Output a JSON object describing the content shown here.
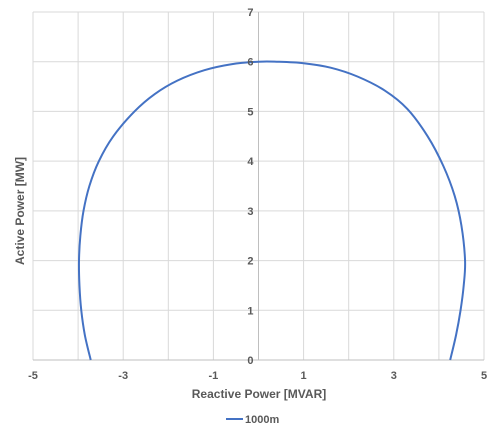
{
  "chart_data": {
    "type": "line",
    "title": "",
    "xlabel": "Reactive Power [MVAR]",
    "ylabel": "Active Power [MW]",
    "xlim": [
      -5,
      5
    ],
    "ylim": [
      0,
      7
    ],
    "xticks": [
      -5,
      -3,
      -1,
      1,
      3,
      5
    ],
    "yticks": [
      0,
      1,
      2,
      3,
      4,
      5,
      6,
      7
    ],
    "x_gridlines": [
      -5,
      -4,
      -3,
      -2,
      -1,
      0,
      1,
      2,
      3,
      4,
      5
    ],
    "grid": true,
    "legend_position": "bottom",
    "series": [
      {
        "name": "1000m",
        "color": "#4472C4",
        "points": [
          [
            -3.72,
            0.0
          ],
          [
            -3.85,
            0.5
          ],
          [
            -3.93,
            1.0
          ],
          [
            -3.97,
            1.5
          ],
          [
            -3.98,
            2.0
          ],
          [
            -3.95,
            2.5
          ],
          [
            -3.88,
            3.0
          ],
          [
            -3.75,
            3.5
          ],
          [
            -3.54,
            4.0
          ],
          [
            -3.22,
            4.5
          ],
          [
            -2.75,
            5.0
          ],
          [
            -2.3,
            5.35
          ],
          [
            -1.8,
            5.62
          ],
          [
            -1.2,
            5.83
          ],
          [
            -0.6,
            5.95
          ],
          [
            0.0,
            6.0
          ],
          [
            0.4,
            6.0
          ],
          [
            1.0,
            5.97
          ],
          [
            1.6,
            5.88
          ],
          [
            2.2,
            5.7
          ],
          [
            2.8,
            5.42
          ],
          [
            3.3,
            5.05
          ],
          [
            3.75,
            4.5
          ],
          [
            4.1,
            3.9
          ],
          [
            4.35,
            3.3
          ],
          [
            4.5,
            2.7
          ],
          [
            4.58,
            2.0
          ],
          [
            4.55,
            1.5
          ],
          [
            4.48,
            1.0
          ],
          [
            4.38,
            0.5
          ],
          [
            4.25,
            0.0
          ]
        ]
      }
    ]
  }
}
